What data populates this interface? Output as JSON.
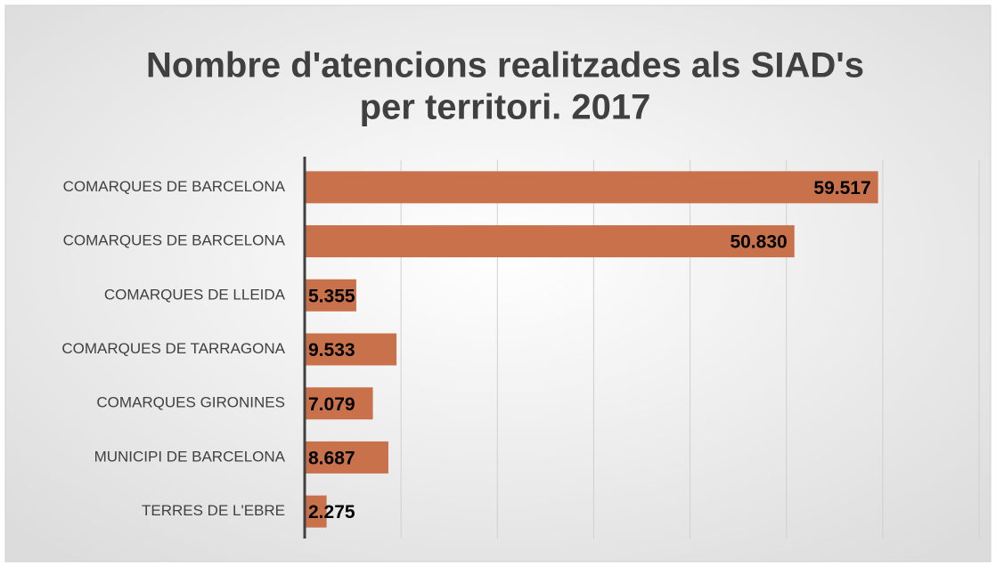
{
  "chart_data": {
    "type": "bar",
    "orientation": "horizontal",
    "title": [
      "Nombre d'atencions realitzades als SIAD's",
      "per territori. 2017"
    ],
    "categories": [
      "COMARQUES DE BARCELONA",
      "COMARQUES DE BARCELONA",
      "COMARQUES DE LLEIDA",
      "COMARQUES DE TARRAGONA",
      "COMARQUES GIRONINES",
      "MUNICIPI DE BARCELONA",
      "TERRES DE L'EBRE"
    ],
    "values": [
      59517,
      50830,
      5355,
      9533,
      7079,
      8687,
      2275
    ],
    "value_labels": [
      "59.517",
      "50.830",
      "5.355",
      "9.533",
      "7.079",
      "8.687",
      "2.275"
    ],
    "color": "#c8714b",
    "xlim": [
      0,
      70000
    ],
    "xticks": [
      0,
      10000,
      20000,
      30000,
      40000,
      50000,
      60000,
      70000
    ],
    "grid": true
  }
}
